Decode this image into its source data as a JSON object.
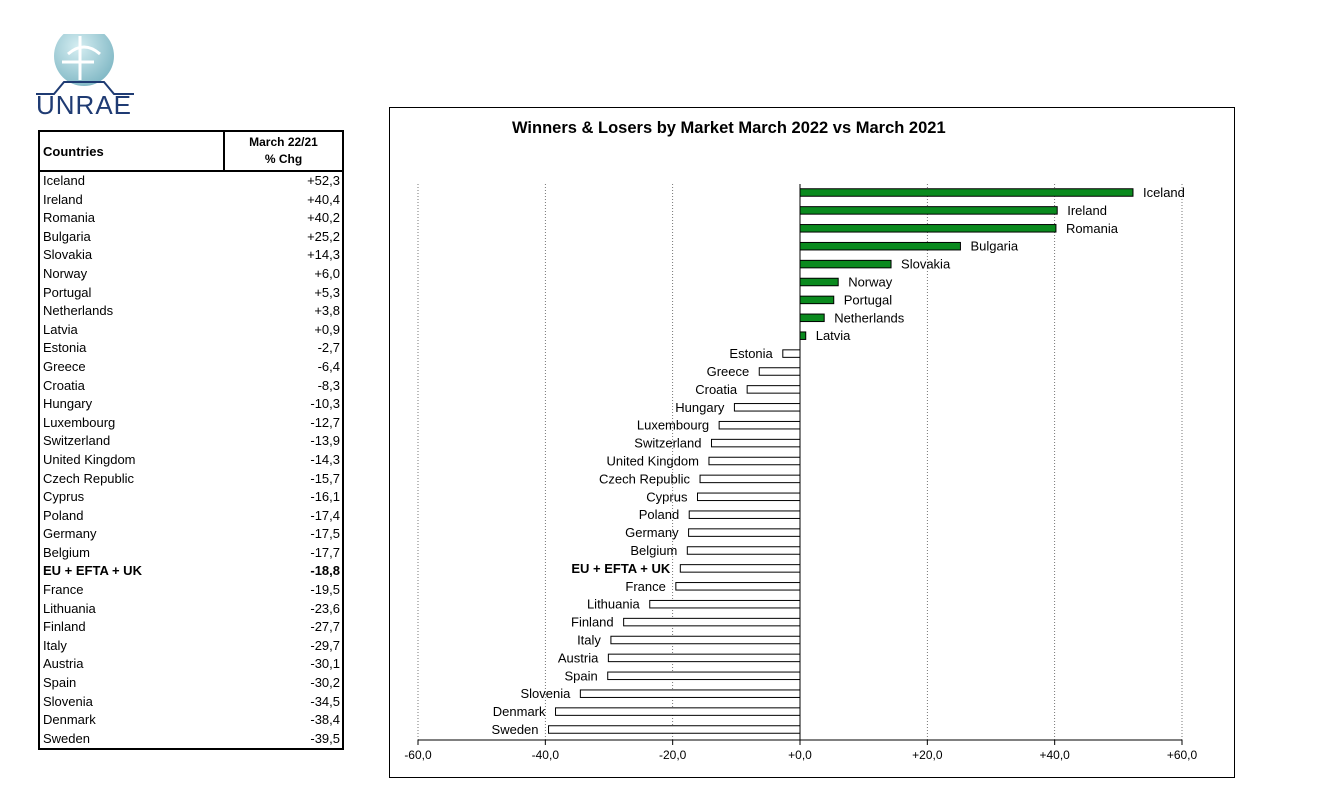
{
  "logo": {
    "text": "UNRAE"
  },
  "table": {
    "header_country": "Countries",
    "header_period": "March 22/21",
    "header_unit": "% Chg",
    "rows": [
      {
        "country": "Iceland",
        "value": "+52,3"
      },
      {
        "country": "Ireland",
        "value": "+40,4"
      },
      {
        "country": "Romania",
        "value": "+40,2"
      },
      {
        "country": "Bulgaria",
        "value": "+25,2"
      },
      {
        "country": "Slovakia",
        "value": "+14,3"
      },
      {
        "country": "Norway",
        "value": "+6,0"
      },
      {
        "country": "Portugal",
        "value": "+5,3"
      },
      {
        "country": "Netherlands",
        "value": "+3,8"
      },
      {
        "country": "Latvia",
        "value": "+0,9"
      },
      {
        "country": "Estonia",
        "value": "-2,7"
      },
      {
        "country": "Greece",
        "value": "-6,4"
      },
      {
        "country": "Croatia",
        "value": "-8,3"
      },
      {
        "country": "Hungary",
        "value": "-10,3"
      },
      {
        "country": "Luxembourg",
        "value": "-12,7"
      },
      {
        "country": "Switzerland",
        "value": "-13,9"
      },
      {
        "country": "United Kingdom",
        "value": "-14,3"
      },
      {
        "country": "Czech Republic",
        "value": "-15,7"
      },
      {
        "country": "Cyprus",
        "value": "-16,1"
      },
      {
        "country": "Poland",
        "value": "-17,4"
      },
      {
        "country": "Germany",
        "value": "-17,5"
      },
      {
        "country": "Belgium",
        "value": "-17,7"
      },
      {
        "country": "EU + EFTA + UK",
        "value": "-18,8",
        "bold": true
      },
      {
        "country": "France",
        "value": "-19,5"
      },
      {
        "country": "Lithuania",
        "value": "-23,6"
      },
      {
        "country": "Finland",
        "value": "-27,7"
      },
      {
        "country": "Italy",
        "value": "-29,7"
      },
      {
        "country": "Austria",
        "value": "-30,1"
      },
      {
        "country": "Spain",
        "value": "-30,2"
      },
      {
        "country": "Slovenia",
        "value": "-34,5"
      },
      {
        "country": "Denmark",
        "value": "-38,4"
      },
      {
        "country": "Sweden",
        "value": "-39,5"
      }
    ]
  },
  "chart_data": {
    "type": "bar",
    "orientation": "horizontal",
    "title": "Winners & Losers by Market March 2022 vs March 2021",
    "xlim": [
      -60,
      60
    ],
    "xticks": [
      -60,
      -40,
      -20,
      0,
      20,
      40,
      60
    ],
    "xtick_labels": [
      "-60,0",
      "-40,0",
      "-20,0",
      "+0,0",
      "+20,0",
      "+40,0",
      "+60,0"
    ],
    "grid": "vertical dotted",
    "positive_color": "#0a8a1e",
    "negative_color": "#ffffff",
    "categories": [
      "Iceland",
      "Ireland",
      "Romania",
      "Bulgaria",
      "Slovakia",
      "Norway",
      "Portugal",
      "Netherlands",
      "Latvia",
      "Estonia",
      "Greece",
      "Croatia",
      "Hungary",
      "Luxembourg",
      "Switzerland",
      "United Kingdom",
      "Czech Republic",
      "Cyprus",
      "Poland",
      "Germany",
      "Belgium",
      "EU + EFTA + UK",
      "France",
      "Lithuania",
      "Finland",
      "Italy",
      "Austria",
      "Spain",
      "Slovenia",
      "Denmark",
      "Sweden"
    ],
    "values": [
      52.3,
      40.4,
      40.2,
      25.2,
      14.3,
      6.0,
      5.3,
      3.8,
      0.9,
      -2.7,
      -6.4,
      -8.3,
      -10.3,
      -12.7,
      -13.9,
      -14.3,
      -15.7,
      -16.1,
      -17.4,
      -17.5,
      -17.7,
      -18.8,
      -19.5,
      -23.6,
      -27.7,
      -29.7,
      -30.1,
      -30.2,
      -34.5,
      -38.4,
      -39.5
    ],
    "bold_categories": [
      "EU + EFTA + UK"
    ]
  }
}
